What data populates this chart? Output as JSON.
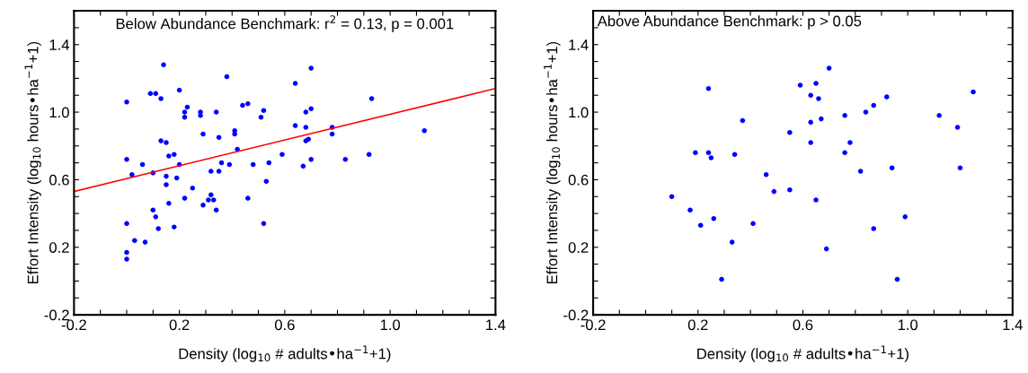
{
  "chart_data": [
    {
      "type": "scatter",
      "title": "Below Abundance Benchmark: r$^{2}$ = 0.13, p = 0.001",
      "xlabel": "Density (log$_{10}$ # adults•ha$^{−1}$+1)",
      "ylabel": "Effort Intensity (log$_{10}$ hours•ha$^{−1}$+1)",
      "xlim": [
        -0.2,
        1.4
      ],
      "ylim": [
        -0.2,
        1.6
      ],
      "xticks": [
        -0.2,
        {
          "value": -0.1,
          "label": null
        },
        {
          "value": 0.0,
          "label": null
        },
        {
          "value": 0.1,
          "label": null
        },
        0.2,
        {
          "value": 0.3,
          "label": null
        },
        {
          "value": 0.4,
          "label": null
        },
        {
          "value": 0.5,
          "label": null
        },
        0.6,
        {
          "value": 0.7,
          "label": null
        },
        {
          "value": 0.8,
          "label": null
        },
        {
          "value": 0.9,
          "label": null
        },
        {
          "value": 1.0,
          "label": "1.0"
        },
        {
          "value": 1.1,
          "label": null
        },
        {
          "value": 1.2,
          "label": null
        },
        {
          "value": 1.3,
          "label": null
        },
        1.4
      ],
      "yticks": [
        -0.2,
        {
          "value": -0.1,
          "label": null
        },
        {
          "value": 0.0,
          "label": null
        },
        {
          "value": 0.1,
          "label": null
        },
        0.2,
        {
          "value": 0.3,
          "label": null
        },
        {
          "value": 0.4,
          "label": null
        },
        {
          "value": 0.5,
          "label": null
        },
        0.6,
        {
          "value": 0.7,
          "label": null
        },
        {
          "value": 0.8,
          "label": null
        },
        {
          "value": 0.9,
          "label": null
        },
        {
          "value": 1.0,
          "label": "1.0"
        },
        {
          "value": 1.1,
          "label": null
        },
        {
          "value": 1.2,
          "label": null
        },
        {
          "value": 1.3,
          "label": null
        },
        1.4,
        {
          "value": 1.5,
          "label": null
        }
      ],
      "grid": false,
      "legend": false,
      "series": [
        {
          "type": "scatter",
          "color": "#0000ff",
          "x": [
            0.14,
            0.0,
            0.09,
            0.11,
            0.13,
            0.2,
            0.38,
            0.7,
            0.64,
            0.23,
            0.22,
            0.22,
            0.28,
            0.28,
            0.34,
            0.44,
            0.46,
            0.52,
            0.51,
            0.68,
            0.7,
            0.93,
            0.64,
            0.68,
            0.78,
            0.78,
            1.13,
            0.29,
            0.35,
            0.41,
            0.41,
            0.13,
            0.15,
            0.69,
            0.68,
            0.42,
            0.16,
            0.18,
            0.0,
            0.59,
            0.7,
            0.83,
            0.92,
            0.06,
            0.2,
            0.36,
            0.39,
            0.48,
            0.54,
            0.67,
            0.02,
            0.1,
            0.15,
            0.19,
            0.15,
            0.32,
            0.35,
            0.25,
            0.53,
            0.22,
            0.32,
            0.31,
            0.33,
            0.29,
            0.16,
            0.46,
            0.1,
            0.34,
            0.11,
            0.0,
            0.52,
            0.18,
            0.12,
            0.03,
            0.07,
            0.0,
            0.0
          ],
          "values": [
            1.28,
            1.06,
            1.11,
            1.11,
            1.08,
            1.13,
            1.21,
            1.26,
            1.17,
            1.03,
            1.0,
            0.97,
            1.0,
            0.98,
            1.0,
            1.04,
            1.05,
            1.01,
            0.97,
            1.0,
            1.02,
            1.08,
            0.92,
            0.91,
            0.91,
            0.87,
            0.89,
            0.87,
            0.85,
            0.89,
            0.87,
            0.83,
            0.82,
            0.84,
            0.83,
            0.78,
            0.74,
            0.75,
            0.72,
            0.75,
            0.72,
            0.72,
            0.75,
            0.69,
            0.69,
            0.7,
            0.69,
            0.69,
            0.7,
            0.68,
            0.63,
            0.64,
            0.62,
            0.61,
            0.57,
            0.65,
            0.65,
            0.55,
            0.59,
            0.49,
            0.51,
            0.48,
            0.48,
            0.45,
            0.46,
            0.49,
            0.42,
            0.42,
            0.38,
            0.34,
            0.34,
            0.32,
            0.31,
            0.24,
            0.23,
            0.17,
            0.13
          ]
        },
        {
          "type": "line",
          "color": "#ff0000",
          "x": [
            -0.2,
            1.4
          ],
          "values": [
            0.53,
            1.14
          ]
        }
      ]
    },
    {
      "type": "scatter",
      "title": "Above Abundance Benchmark: p > 0.05",
      "xlabel": "Density (log$_{10}$ # adults•ha$^{−1}$+1)",
      "ylabel": "Effort Intensity (log$_{10}$ hours•ha$^{−1}$+1)",
      "xlim": [
        -0.2,
        1.4
      ],
      "ylim": [
        -0.2,
        1.6
      ],
      "xticks": [
        -0.2,
        {
          "value": -0.1,
          "label": null
        },
        {
          "value": 0.0,
          "label": null
        },
        {
          "value": 0.1,
          "label": null
        },
        0.2,
        {
          "value": 0.3,
          "label": null
        },
        {
          "value": 0.4,
          "label": null
        },
        {
          "value": 0.5,
          "label": null
        },
        0.6,
        {
          "value": 0.7,
          "label": null
        },
        {
          "value": 0.8,
          "label": null
        },
        {
          "value": 0.9,
          "label": null
        },
        {
          "value": 1.0,
          "label": "1.0"
        },
        {
          "value": 1.1,
          "label": null
        },
        {
          "value": 1.2,
          "label": null
        },
        {
          "value": 1.3,
          "label": null
        },
        1.4
      ],
      "yticks": [
        -0.2,
        {
          "value": -0.1,
          "label": null
        },
        {
          "value": 0.0,
          "label": null
        },
        {
          "value": 0.1,
          "label": null
        },
        0.2,
        {
          "value": 0.3,
          "label": null
        },
        {
          "value": 0.4,
          "label": null
        },
        {
          "value": 0.5,
          "label": null
        },
        0.6,
        {
          "value": 0.7,
          "label": null
        },
        {
          "value": 0.8,
          "label": null
        },
        {
          "value": 0.9,
          "label": null
        },
        {
          "value": 1.0,
          "label": "1.0"
        },
        {
          "value": 1.1,
          "label": null
        },
        {
          "value": 1.2,
          "label": null
        },
        {
          "value": 1.3,
          "label": null
        },
        1.4,
        {
          "value": 1.5,
          "label": null
        }
      ],
      "grid": false,
      "legend": false,
      "series": [
        {
          "type": "scatter",
          "color": "#0000ff",
          "x": [
            0.19,
            0.24,
            0.25,
            0.24,
            0.34,
            0.37,
            0.55,
            0.59,
            0.65,
            0.7,
            0.63,
            0.66,
            0.63,
            0.67,
            0.63,
            0.78,
            0.76,
            0.76,
            0.84,
            0.87,
            0.92,
            1.12,
            1.19,
            1.25,
            0.94,
            1.2,
            0.1,
            0.17,
            0.21,
            0.26,
            0.29,
            0.33,
            0.41,
            0.46,
            0.49,
            0.55,
            0.65,
            0.69,
            0.82,
            0.87,
            0.99,
            0.96
          ],
          "values": [
            0.76,
            0.76,
            0.73,
            1.14,
            0.75,
            0.95,
            0.88,
            1.16,
            1.17,
            1.26,
            1.1,
            1.08,
            0.94,
            0.96,
            0.82,
            0.82,
            0.98,
            0.76,
            1.0,
            1.04,
            1.09,
            0.98,
            0.91,
            1.12,
            0.67,
            0.67,
            0.5,
            0.42,
            0.33,
            0.37,
            0.01,
            0.23,
            0.34,
            0.63,
            0.53,
            0.54,
            0.48,
            0.19,
            0.65,
            0.31,
            0.38,
            0.01
          ]
        }
      ]
    }
  ]
}
